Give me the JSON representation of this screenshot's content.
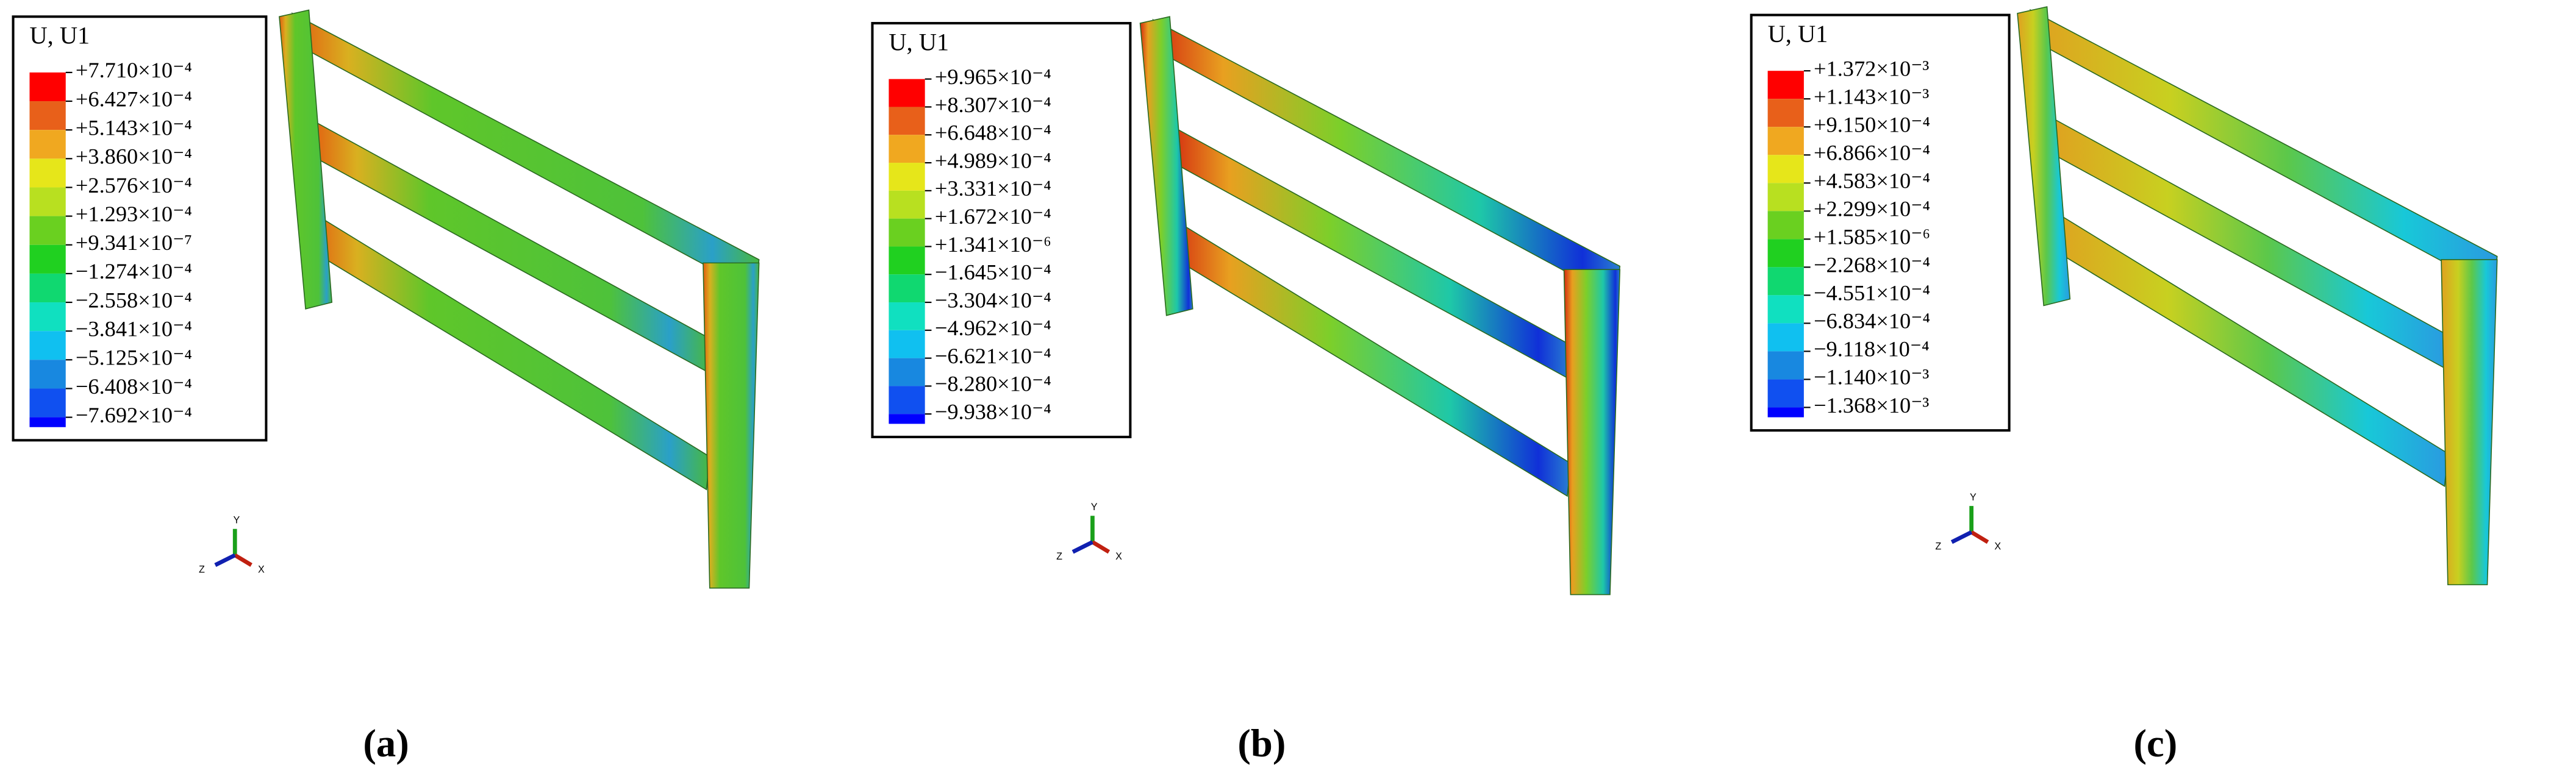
{
  "panels": [
    {
      "legend_title": "U, U1",
      "legend_labels": [
        "+7.710×10⁻⁴",
        "+6.427×10⁻⁴",
        "+5.143×10⁻⁴",
        "+3.860×10⁻⁴",
        "+2.576×10⁻⁴",
        "+1.293×10⁻⁴",
        "+9.341×10⁻⁷",
        "−1.274×10⁻⁴",
        "−2.558×10⁻⁴",
        "−3.841×10⁻⁴",
        "−5.125×10⁻⁴",
        "−6.408×10⁻⁴",
        "−7.692×10⁻⁴"
      ],
      "axis_labels": {
        "y": "Y",
        "z": "Z",
        "x": "X"
      },
      "caption": "(a)"
    },
    {
      "legend_title": "U, U1",
      "legend_labels": [
        "+9.965×10⁻⁴",
        "+8.307×10⁻⁴",
        "+6.648×10⁻⁴",
        "+4.989×10⁻⁴",
        "+3.331×10⁻⁴",
        "+1.672×10⁻⁴",
        "+1.341×10⁻⁶",
        "−1.645×10⁻⁴",
        "−3.304×10⁻⁴",
        "−4.962×10⁻⁴",
        "−6.621×10⁻⁴",
        "−8.280×10⁻⁴",
        "−9.938×10⁻⁴"
      ],
      "axis_labels": {
        "y": "Y",
        "z": "Z",
        "x": "X"
      },
      "caption": "(b)"
    },
    {
      "legend_title": "U, U1",
      "legend_labels": [
        "+1.372×10⁻³",
        "+1.143×10⁻³",
        "+9.150×10⁻⁴",
        "+6.866×10⁻⁴",
        "+4.583×10⁻⁴",
        "+2.299×10⁻⁴",
        "+1.585×10⁻⁶",
        "−2.268×10⁻⁴",
        "−4.551×10⁻⁴",
        "−6.834×10⁻⁴",
        "−9.118×10⁻⁴",
        "−1.140×10⁻³",
        "−1.368×10⁻³"
      ],
      "axis_labels": {
        "y": "Y",
        "z": "Z",
        "x": "X"
      },
      "caption": "(c)"
    }
  ]
}
